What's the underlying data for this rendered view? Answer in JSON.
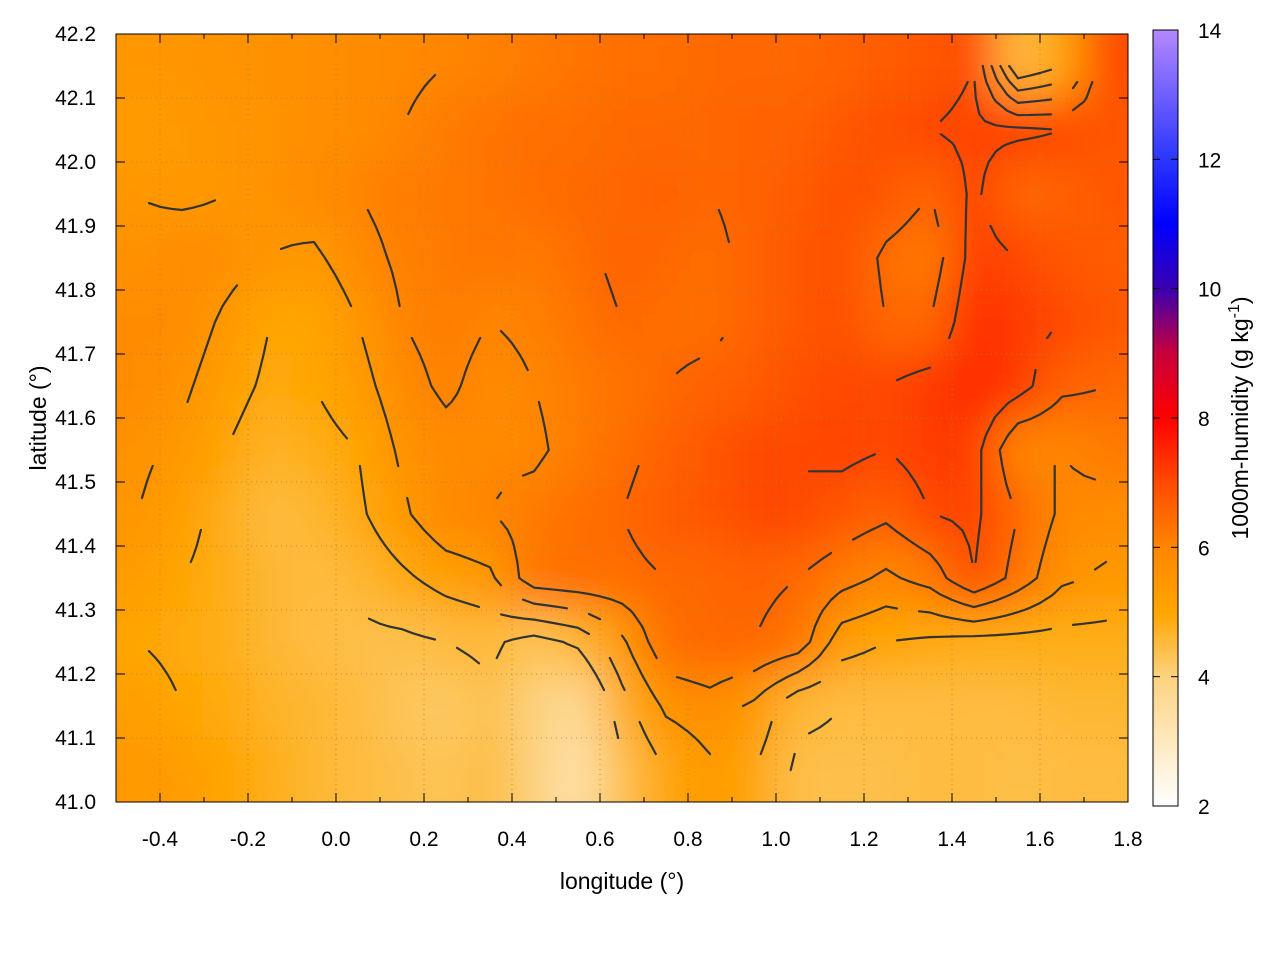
{
  "chart_data": {
    "type": "heatmap",
    "title": "",
    "xlabel": "longitude (°)",
    "ylabel": "latitude (°)",
    "colorbar_label": "1000m-humidity (g kg",
    "colorbar_label_sup": "-1",
    "colorbar_label_end": ")",
    "xlim": [
      -0.5,
      1.8
    ],
    "ylim": [
      41.0,
      42.2
    ],
    "clim": [
      2,
      14
    ],
    "xticks": [
      "-0.4",
      "-0.2",
      "0.0",
      "0.2",
      "0.4",
      "0.6",
      "0.8",
      "1.0",
      "1.2",
      "1.4",
      "1.6",
      "1.8"
    ],
    "yticks": [
      "41.0",
      "41.1",
      "41.2",
      "41.3",
      "41.4",
      "41.5",
      "41.6",
      "41.7",
      "41.8",
      "41.9",
      "42.0",
      "42.1",
      "42.2"
    ],
    "cticks": [
      "2",
      "4",
      "6",
      "8",
      "10",
      "12",
      "14"
    ],
    "grid": true,
    "contours": true,
    "colormap": [
      [
        2,
        "#ffffff"
      ],
      [
        4,
        "#fcd27e"
      ],
      [
        5,
        "#ffa500"
      ],
      [
        6,
        "#ff8600"
      ],
      [
        7,
        "#ff4a00"
      ],
      [
        8,
        "#ff0000"
      ],
      [
        9,
        "#c8003c"
      ],
      [
        10,
        "#3a00b0"
      ],
      [
        11,
        "#0000ff"
      ],
      [
        12,
        "#2b36ff"
      ],
      [
        14,
        "#b489ff"
      ]
    ],
    "grid_lon": [
      -0.45,
      -0.35,
      -0.25,
      -0.15,
      -0.05,
      0.05,
      0.15,
      0.25,
      0.35,
      0.45,
      0.55,
      0.65,
      0.75,
      0.85,
      0.95,
      1.05,
      1.15,
      1.25,
      1.35,
      1.45,
      1.55,
      1.65,
      1.75
    ],
    "grid_lat": [
      42.15,
      42.05,
      41.95,
      41.85,
      41.75,
      41.65,
      41.55,
      41.45,
      41.35,
      41.25,
      41.15,
      41.05
    ],
    "values": [
      [
        5.5,
        5.5,
        5.6,
        5.6,
        5.7,
        5.8,
        5.9,
        6.0,
        6.1,
        6.2,
        6.3,
        6.4,
        6.4,
        6.5,
        6.5,
        6.5,
        6.6,
        6.7,
        6.8,
        7.0,
        4.5,
        5.0,
        7.0
      ],
      [
        5.3,
        5.4,
        5.5,
        5.6,
        5.7,
        5.8,
        6.0,
        6.2,
        6.3,
        6.4,
        6.4,
        6.5,
        6.5,
        6.5,
        6.6,
        6.6,
        6.8,
        6.9,
        7.0,
        7.1,
        7.1,
        7.0,
        6.8
      ],
      [
        5.5,
        5.4,
        5.5,
        5.6,
        5.8,
        6.0,
        6.2,
        6.2,
        6.3,
        6.4,
        6.5,
        6.5,
        6.6,
        6.5,
        6.6,
        6.7,
        6.9,
        6.8,
        6.5,
        7.1,
        6.5,
        6.6,
        6.8
      ],
      [
        5.6,
        5.8,
        5.7,
        5.5,
        5.4,
        5.8,
        6.1,
        6.2,
        6.3,
        6.2,
        6.4,
        6.6,
        6.5,
        6.4,
        6.6,
        6.8,
        6.9,
        6.4,
        6.2,
        7.2,
        7.0,
        6.8,
        6.7
      ],
      [
        5.8,
        5.8,
        5.4,
        5.0,
        5.0,
        5.5,
        6.0,
        6.2,
        6.0,
        6.1,
        6.3,
        6.5,
        6.4,
        6.4,
        6.6,
        6.8,
        6.9,
        6.5,
        6.5,
        7.4,
        7.2,
        7.0,
        6.8
      ],
      [
        5.8,
        5.6,
        5.2,
        4.9,
        5.0,
        5.3,
        5.8,
        6.1,
        5.8,
        6.0,
        6.2,
        6.3,
        6.5,
        6.6,
        6.7,
        6.9,
        7.0,
        7.0,
        7.2,
        7.5,
        7.2,
        6.6,
        6.5
      ],
      [
        5.6,
        5.4,
        5.0,
        4.7,
        4.8,
        5.0,
        5.6,
        5.8,
        5.9,
        5.9,
        6.2,
        6.4,
        6.6,
        6.8,
        7.0,
        7.0,
        7.1,
        7.0,
        7.2,
        7.2,
        6.0,
        6.0,
        6.2
      ],
      [
        5.5,
        5.2,
        4.8,
        4.5,
        4.6,
        4.9,
        5.4,
        5.9,
        6.0,
        6.2,
        6.4,
        6.5,
        6.7,
        6.8,
        7.0,
        7.0,
        6.8,
        6.6,
        7.0,
        7.1,
        6.5,
        5.9,
        5.8
      ],
      [
        5.3,
        5.0,
        4.8,
        4.6,
        4.5,
        4.6,
        4.9,
        5.2,
        5.4,
        6.3,
        6.4,
        6.4,
        6.5,
        6.5,
        6.6,
        6.5,
        6.2,
        5.9,
        6.2,
        7.0,
        6.3,
        5.6,
        5.4
      ],
      [
        5.0,
        4.9,
        4.8,
        4.6,
        4.5,
        4.4,
        4.4,
        4.5,
        4.6,
        4.3,
        4.6,
        5.4,
        6.4,
        6.5,
        6.5,
        6.3,
        5.2,
        5.0,
        4.9,
        4.8,
        4.8,
        4.8,
        4.8
      ],
      [
        5.2,
        5.0,
        4.9,
        4.7,
        4.6,
        4.5,
        4.3,
        4.2,
        4.4,
        4.0,
        3.6,
        4.8,
        5.6,
        5.8,
        5.4,
        4.6,
        4.5,
        4.5,
        4.5,
        4.5,
        4.5,
        4.6,
        4.6
      ],
      [
        5.4,
        5.3,
        5.0,
        4.8,
        4.6,
        4.5,
        4.4,
        4.3,
        4.5,
        4.0,
        3.3,
        4.4,
        5.0,
        5.4,
        5.0,
        4.4,
        4.4,
        4.4,
        4.5,
        4.5,
        4.4,
        4.5,
        4.5
      ]
    ],
    "contour_levels": [
      4.5,
      5.0,
      5.5,
      6.0,
      6.5,
      7.0
    ],
    "contour_color": "#333333"
  }
}
